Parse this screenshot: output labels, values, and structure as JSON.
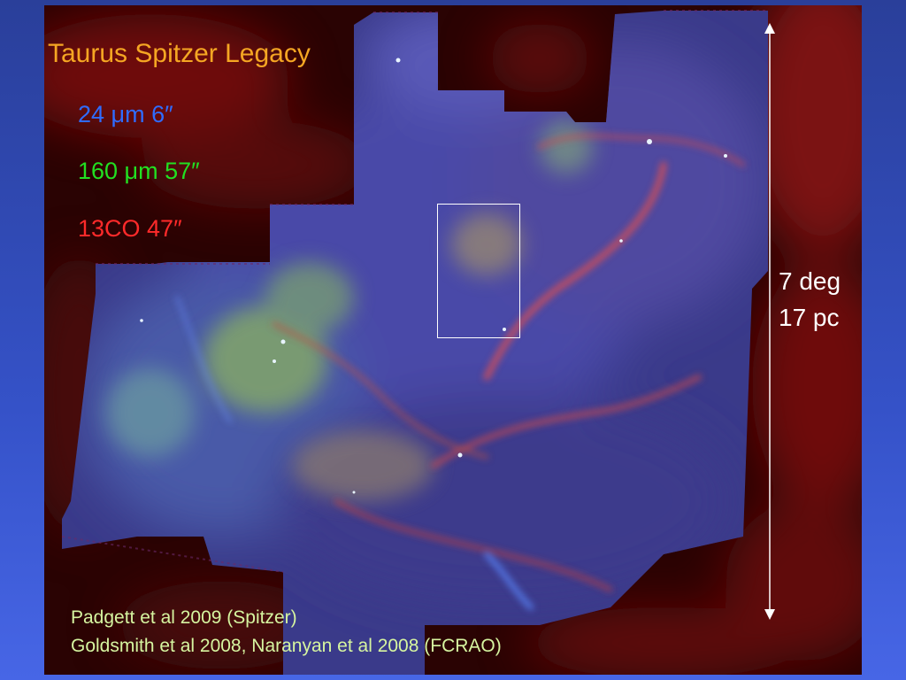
{
  "image": {
    "title": "Taurus Spitzer Legacy",
    "bands": [
      {
        "text": "24 μm 6″",
        "color": "#2f6cff"
      },
      {
        "text": "160 μm 57″",
        "color": "#22e022"
      },
      {
        "text": "13CO 47″",
        "color": "#ff2a2a"
      }
    ],
    "scale": {
      "angular": "7 deg",
      "physical": "17 pc"
    },
    "references": [
      "Padgett et al 2009 (Spitzer)",
      "Goldsmith et al 2008, Naranyan et al 2008 (FCRAO)"
    ],
    "colors": {
      "title": "#f5a623",
      "reference": "#d6f5a0",
      "scale": "#ffffff",
      "background": "#3552c8"
    }
  }
}
